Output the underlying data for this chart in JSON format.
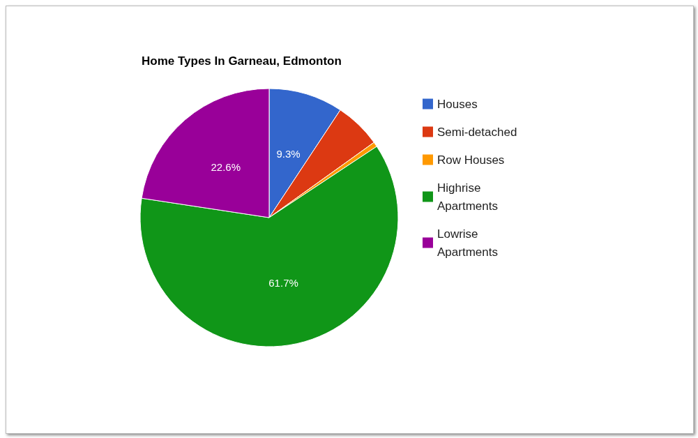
{
  "chart_data": {
    "type": "pie",
    "title": "Home Types In Garneau, Edmonton",
    "categories": [
      "Houses",
      "Semi-detached",
      "Row Houses",
      "Highrise Apartments",
      "Lowrise Apartments"
    ],
    "values": [
      9.3,
      5.8,
      0.6,
      61.7,
      22.6
    ],
    "value_labels": [
      "9.3%",
      null,
      null,
      "61.7%",
      "22.6%"
    ],
    "colors": [
      "#3366cc",
      "#dc3912",
      "#ff9900",
      "#109618",
      "#990099"
    ],
    "legend": "right"
  }
}
